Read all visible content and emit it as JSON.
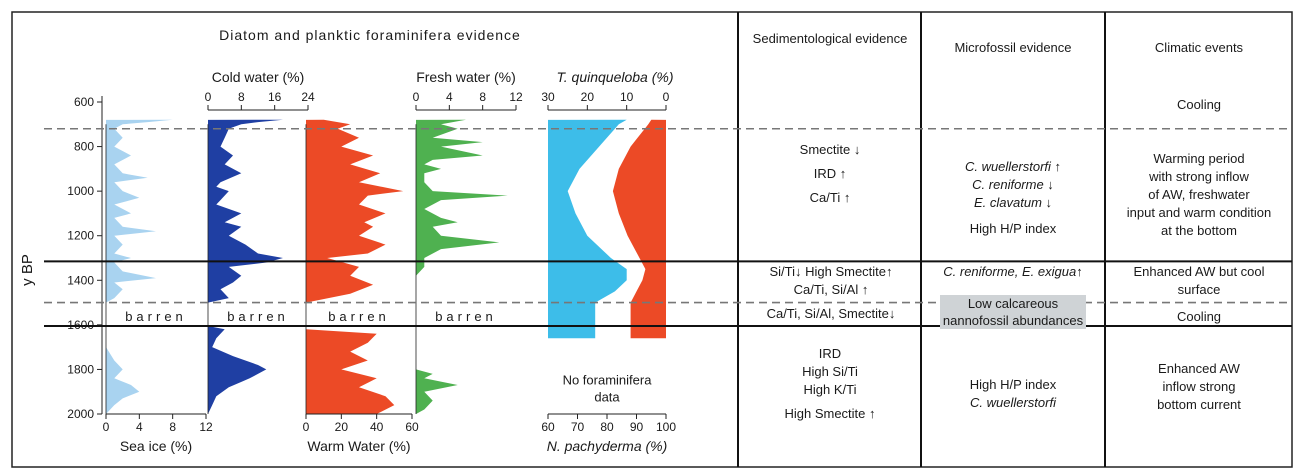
{
  "panel_title": "Diatom and planktic foraminifera evidence",
  "y_axis": {
    "label": "y BP",
    "ticks": [
      "600",
      "800",
      "1000",
      "1200",
      "1400",
      "1600",
      "1800",
      "2000"
    ],
    "range": [
      600,
      2000
    ]
  },
  "tracks": [
    {
      "id": "sea-ice",
      "label": "Sea ice (%)",
      "label_pos": "bottom",
      "ticks": [
        "0",
        "4",
        "8",
        "12"
      ],
      "range": [
        0,
        12
      ],
      "color": "#a9d3f0"
    },
    {
      "id": "cold-water",
      "label": "Cold water (%)",
      "label_pos": "top",
      "ticks": [
        "0",
        "8",
        "16",
        "24"
      ],
      "range": [
        0,
        24
      ],
      "color": "#1f3fa3"
    },
    {
      "id": "warm-water",
      "label": "Warm Water (%)",
      "label_pos": "bottom",
      "ticks": [
        "0",
        "20",
        "40",
        "60"
      ],
      "range": [
        0,
        60
      ],
      "color": "#ec4a26"
    },
    {
      "id": "fresh-water",
      "label": "Fresh water (%)",
      "label_pos": "top",
      "ticks": [
        "0",
        "4",
        "8",
        "12"
      ],
      "range": [
        0,
        12
      ],
      "color": "#4fb150"
    }
  ],
  "barren_label": "barren",
  "foram": {
    "top_label": "T. quinqueloba (%)",
    "top_ticks": [
      "30",
      "20",
      "10",
      "0"
    ],
    "bottom_label": "N. pachyderma (%)",
    "bottom_ticks": [
      "60",
      "70",
      "80",
      "90",
      "100"
    ],
    "no_data_line1": "No foraminifera",
    "no_data_line2": "data",
    "colors": {
      "tquinqueloba": "#3dbde9",
      "npachyderma": "#ec4a26"
    }
  },
  "columns": {
    "sedimentological": "Sedimentological evidence",
    "microfossil": "Microfossil evidence",
    "climatic": "Climatic events"
  },
  "zones": [
    {
      "sed": [],
      "micro": [],
      "climate": [
        "Cooling"
      ]
    },
    {
      "sed": [
        "Smectite ↓",
        "IRD ↑",
        "Ca/Ti ↑"
      ],
      "micro_italic": [
        "C. wuellerstorfi ↑",
        "C. reniforme ↓",
        "E. clavatum ↓"
      ],
      "micro": [
        "High H/P index"
      ],
      "climate": [
        "Warming period",
        "with strong inflow",
        "of AW, freshwater",
        "input and warm condition",
        "at the bottom"
      ]
    },
    {
      "sed": [
        "Si/Ti↓  High Smectite↑",
        "Ca/Ti, Si/Al ↑"
      ],
      "micro_italic": [
        "C. reniforme, E. exigua↑"
      ],
      "climate": [
        "Enhanced AW but cool",
        "surface"
      ]
    },
    {
      "sed": [
        "Ca/Ti, Si/Al, Smectite↓"
      ],
      "micro": [
        "Low calcareous",
        "nannofossil abundances"
      ],
      "climate": [
        "Cooling"
      ]
    },
    {
      "sed": [
        "IRD",
        "High Si/Ti",
        "High K/Ti",
        "High Smectite ↑"
      ],
      "micro": [
        "High H/P index"
      ],
      "micro_italic": [
        "C. wuellerstorfi"
      ],
      "climate": [
        "Enhanced AW",
        "inflow strong",
        "bottom current"
      ]
    }
  ],
  "chart_data": {
    "type": "area",
    "ylabel": "y BP",
    "ylim": [
      600,
      2000
    ],
    "boundaries": {
      "dashed": [
        720,
        1500
      ],
      "solid": [
        1315,
        1605
      ]
    },
    "barren_interval": [
      1500,
      1605
    ],
    "series": [
      {
        "name": "Sea ice (%)",
        "xlim": [
          0,
          12
        ],
        "points": [
          [
            680,
            8
          ],
          [
            690,
            5
          ],
          [
            700,
            2
          ],
          [
            720,
            1
          ],
          [
            760,
            2
          ],
          [
            800,
            1
          ],
          [
            840,
            3
          ],
          [
            880,
            1
          ],
          [
            920,
            2
          ],
          [
            940,
            5
          ],
          [
            960,
            1
          ],
          [
            1000,
            2
          ],
          [
            1030,
            4
          ],
          [
            1060,
            1
          ],
          [
            1100,
            3
          ],
          [
            1120,
            1
          ],
          [
            1160,
            2
          ],
          [
            1180,
            6
          ],
          [
            1200,
            1
          ],
          [
            1240,
            2
          ],
          [
            1280,
            1
          ],
          [
            1300,
            3
          ],
          [
            1320,
            1
          ],
          [
            1360,
            2
          ],
          [
            1390,
            6
          ],
          [
            1410,
            1
          ],
          [
            1440,
            2
          ],
          [
            1480,
            1
          ],
          [
            1500,
            0
          ],
          [
            1605,
            0
          ],
          [
            1620,
            0
          ],
          [
            1700,
            0
          ],
          [
            1760,
            1
          ],
          [
            1800,
            2
          ],
          [
            1840,
            1
          ],
          [
            1870,
            3
          ],
          [
            1900,
            4
          ],
          [
            1930,
            2
          ],
          [
            1960,
            1
          ],
          [
            2000,
            0
          ]
        ]
      },
      {
        "name": "Cold water (%)",
        "xlim": [
          0,
          24
        ],
        "points": [
          [
            680,
            18
          ],
          [
            690,
            12
          ],
          [
            700,
            8
          ],
          [
            720,
            5
          ],
          [
            760,
            4
          ],
          [
            800,
            3
          ],
          [
            840,
            6
          ],
          [
            880,
            4
          ],
          [
            920,
            8
          ],
          [
            960,
            3
          ],
          [
            980,
            2
          ],
          [
            1000,
            5
          ],
          [
            1040,
            3
          ],
          [
            1060,
            2
          ],
          [
            1100,
            8
          ],
          [
            1140,
            4
          ],
          [
            1160,
            8
          ],
          [
            1200,
            5
          ],
          [
            1240,
            9
          ],
          [
            1280,
            12
          ],
          [
            1300,
            18
          ],
          [
            1320,
            14
          ],
          [
            1340,
            5
          ],
          [
            1380,
            8
          ],
          [
            1410,
            6
          ],
          [
            1440,
            3
          ],
          [
            1480,
            5
          ],
          [
            1500,
            0
          ],
          [
            1605,
            0
          ],
          [
            1620,
            4
          ],
          [
            1660,
            2
          ],
          [
            1700,
            1
          ],
          [
            1740,
            6
          ],
          [
            1780,
            12
          ],
          [
            1800,
            14
          ],
          [
            1840,
            10
          ],
          [
            1880,
            5
          ],
          [
            1920,
            2
          ],
          [
            1960,
            1
          ],
          [
            2000,
            0
          ]
        ]
      },
      {
        "name": "Warm Water (%)",
        "xlim": [
          0,
          60
        ],
        "points": [
          [
            680,
            10
          ],
          [
            700,
            25
          ],
          [
            720,
            18
          ],
          [
            760,
            30
          ],
          [
            800,
            20
          ],
          [
            840,
            38
          ],
          [
            880,
            25
          ],
          [
            920,
            42
          ],
          [
            960,
            30
          ],
          [
            1000,
            55
          ],
          [
            1020,
            35
          ],
          [
            1060,
            30
          ],
          [
            1100,
            45
          ],
          [
            1140,
            33
          ],
          [
            1160,
            38
          ],
          [
            1200,
            30
          ],
          [
            1240,
            45
          ],
          [
            1280,
            35
          ],
          [
            1300,
            12
          ],
          [
            1340,
            30
          ],
          [
            1380,
            25
          ],
          [
            1420,
            38
          ],
          [
            1460,
            25
          ],
          [
            1500,
            0
          ],
          [
            1605,
            0
          ],
          [
            1620,
            0
          ],
          [
            1640,
            40
          ],
          [
            1680,
            35
          ],
          [
            1720,
            25
          ],
          [
            1760,
            35
          ],
          [
            1800,
            20
          ],
          [
            1840,
            40
          ],
          [
            1880,
            30
          ],
          [
            1920,
            45
          ],
          [
            1960,
            50
          ],
          [
            2000,
            40
          ]
        ]
      },
      {
        "name": "Fresh water (%)",
        "xlim": [
          0,
          12
        ],
        "points": [
          [
            680,
            6
          ],
          [
            700,
            3
          ],
          [
            720,
            5
          ],
          [
            760,
            2
          ],
          [
            780,
            8
          ],
          [
            800,
            3
          ],
          [
            840,
            8
          ],
          [
            860,
            2
          ],
          [
            880,
            1
          ],
          [
            900,
            3
          ],
          [
            920,
            1
          ],
          [
            960,
            1
          ],
          [
            1000,
            2
          ],
          [
            1020,
            11
          ],
          [
            1040,
            3
          ],
          [
            1080,
            1
          ],
          [
            1120,
            3
          ],
          [
            1140,
            5
          ],
          [
            1160,
            2
          ],
          [
            1200,
            3
          ],
          [
            1230,
            10
          ],
          [
            1260,
            3
          ],
          [
            1300,
            1
          ],
          [
            1340,
            1
          ],
          [
            1380,
            0
          ],
          [
            1500,
            0
          ],
          [
            1605,
            0
          ],
          [
            1700,
            0
          ],
          [
            1800,
            0
          ],
          [
            1820,
            2
          ],
          [
            1840,
            1
          ],
          [
            1870,
            5
          ],
          [
            1900,
            1
          ],
          [
            1940,
            2
          ],
          [
            1980,
            1
          ],
          [
            2000,
            0
          ]
        ]
      },
      {
        "name": "T. quinqueloba (%)",
        "xlim": [
          30,
          0
        ],
        "points": [
          [
            680,
            10
          ],
          [
            700,
            12
          ],
          [
            800,
            17
          ],
          [
            900,
            22
          ],
          [
            1000,
            25
          ],
          [
            1100,
            23
          ],
          [
            1200,
            20
          ],
          [
            1300,
            14
          ],
          [
            1350,
            10
          ],
          [
            1400,
            10
          ],
          [
            1450,
            13
          ],
          [
            1500,
            18
          ],
          [
            1600,
            18
          ],
          [
            1660,
            18
          ]
        ]
      },
      {
        "name": "N. pachyderma (%)",
        "xlim": [
          60,
          100
        ],
        "points": [
          [
            680,
            95
          ],
          [
            700,
            94
          ],
          [
            800,
            88
          ],
          [
            900,
            84
          ],
          [
            1000,
            82
          ],
          [
            1100,
            84
          ],
          [
            1200,
            87
          ],
          [
            1300,
            91
          ],
          [
            1350,
            93
          ],
          [
            1400,
            92
          ],
          [
            1450,
            90
          ],
          [
            1500,
            88
          ],
          [
            1600,
            88
          ],
          [
            1660,
            88
          ]
        ]
      }
    ]
  }
}
